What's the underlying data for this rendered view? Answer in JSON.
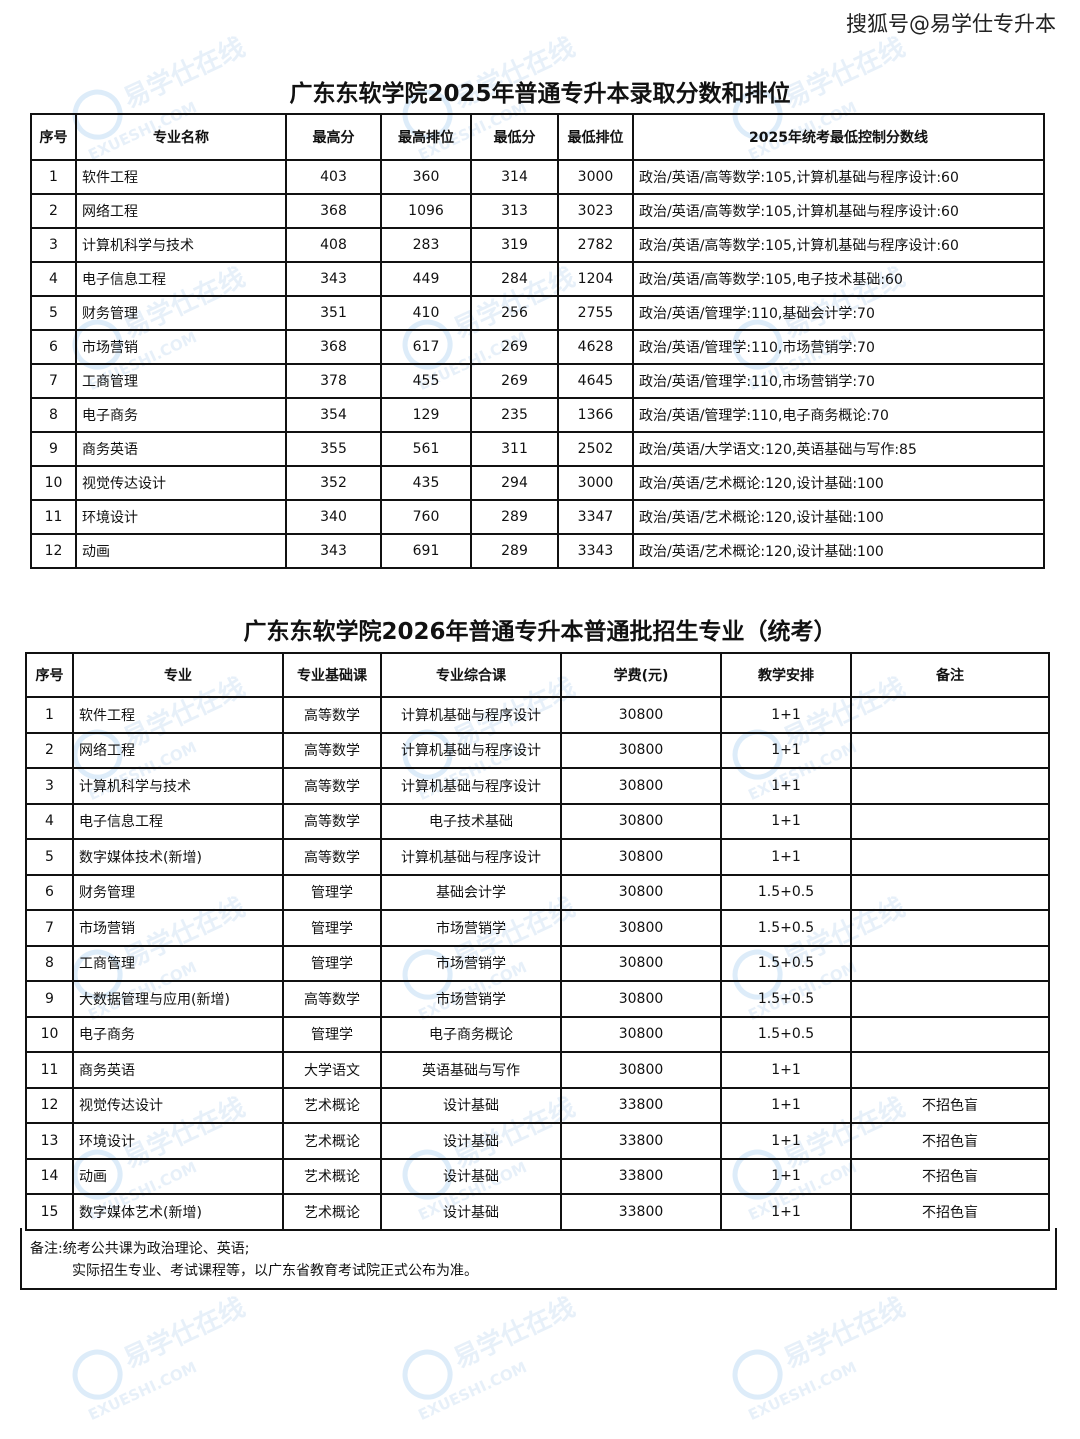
{
  "credit": "搜狐号@易学仕专升本",
  "watermark": {
    "cn": "易学仕在线",
    "en": "EXUESHI.COM"
  },
  "table1": {
    "title": "广东东软学院2025年普通专升本录取分数和排位",
    "headers": [
      "序号",
      "专业名称",
      "最高分",
      "最高排位",
      "最低分",
      "最低排位",
      "2025年统考最低控制分数线"
    ],
    "rows": [
      [
        "1",
        "软件工程",
        "403",
        "360",
        "314",
        "3000",
        "政治/英语/高等数学:105,计算机基础与程序设计:60"
      ],
      [
        "2",
        "网络工程",
        "368",
        "1096",
        "313",
        "3023",
        "政治/英语/高等数学:105,计算机基础与程序设计:60"
      ],
      [
        "3",
        "计算机科学与技术",
        "408",
        "283",
        "319",
        "2782",
        "政治/英语/高等数学:105,计算机基础与程序设计:60"
      ],
      [
        "4",
        "电子信息工程",
        "343",
        "449",
        "284",
        "1204",
        "政治/英语/高等数学:105,电子技术基础:60"
      ],
      [
        "5",
        "财务管理",
        "351",
        "410",
        "256",
        "2755",
        "政治/英语/管理学:110,基础会计学:70"
      ],
      [
        "6",
        "市场营销",
        "368",
        "617",
        "269",
        "4628",
        "政治/英语/管理学:110,市场营销学:70"
      ],
      [
        "7",
        "工商管理",
        "378",
        "455",
        "269",
        "4645",
        "政治/英语/管理学:110,市场营销学:70"
      ],
      [
        "8",
        "电子商务",
        "354",
        "129",
        "235",
        "1366",
        "政治/英语/管理学:110,电子商务概论:70"
      ],
      [
        "9",
        "商务英语",
        "355",
        "561",
        "311",
        "2502",
        "政治/英语/大学语文:120,英语基础与写作:85"
      ],
      [
        "10",
        "视觉传达设计",
        "352",
        "435",
        "294",
        "3000",
        "政治/英语/艺术概论:120,设计基础:100"
      ],
      [
        "11",
        "环境设计",
        "340",
        "760",
        "289",
        "3347",
        "政治/英语/艺术概论:120,设计基础:100"
      ],
      [
        "12",
        "动画",
        "343",
        "691",
        "289",
        "3343",
        "政治/英语/艺术概论:120,设计基础:100"
      ]
    ]
  },
  "table2": {
    "title": "广东东软学院2026年普通专升本普通批招生专业（统考）",
    "headers": [
      "序号",
      "专业",
      "专业基础课",
      "专业综合课",
      "学费(元)",
      "教学安排",
      "备注"
    ],
    "rows": [
      [
        "1",
        "软件工程",
        "高等数学",
        "计算机基础与程序设计",
        "30800",
        "1+1",
        ""
      ],
      [
        "2",
        "网络工程",
        "高等数学",
        "计算机基础与程序设计",
        "30800",
        "1+1",
        ""
      ],
      [
        "3",
        "计算机科学与技术",
        "高等数学",
        "计算机基础与程序设计",
        "30800",
        "1+1",
        ""
      ],
      [
        "4",
        "电子信息工程",
        "高等数学",
        "电子技术基础",
        "30800",
        "1+1",
        ""
      ],
      [
        "5",
        "数字媒体技术(新增)",
        "高等数学",
        "计算机基础与程序设计",
        "30800",
        "1+1",
        ""
      ],
      [
        "6",
        "财务管理",
        "管理学",
        "基础会计学",
        "30800",
        "1.5+0.5",
        ""
      ],
      [
        "7",
        "市场营销",
        "管理学",
        "市场营销学",
        "30800",
        "1.5+0.5",
        ""
      ],
      [
        "8",
        "工商管理",
        "管理学",
        "市场营销学",
        "30800",
        "1.5+0.5",
        ""
      ],
      [
        "9",
        "大数据管理与应用(新增)",
        "高等数学",
        "市场营销学",
        "30800",
        "1.5+0.5",
        ""
      ],
      [
        "10",
        "电子商务",
        "管理学",
        "电子商务概论",
        "30800",
        "1.5+0.5",
        ""
      ],
      [
        "11",
        "商务英语",
        "大学语文",
        "英语基础与写作",
        "30800",
        "1+1",
        ""
      ],
      [
        "12",
        "视觉传达设计",
        "艺术概论",
        "设计基础",
        "33800",
        "1+1",
        "不招色盲"
      ],
      [
        "13",
        "环境设计",
        "艺术概论",
        "设计基础",
        "33800",
        "1+1",
        "不招色盲"
      ],
      [
        "14",
        "动画",
        "艺术概论",
        "设计基础",
        "33800",
        "1+1",
        "不招色盲"
      ],
      [
        "15",
        "数字媒体艺术(新增)",
        "艺术概论",
        "设计基础",
        "33800",
        "1+1",
        "不招色盲"
      ]
    ],
    "notes": [
      "备注:统考公共课为政治理论、英语;",
      "实际招生专业、考试课程等，以广东省教育考试院正式公布为准。"
    ]
  }
}
